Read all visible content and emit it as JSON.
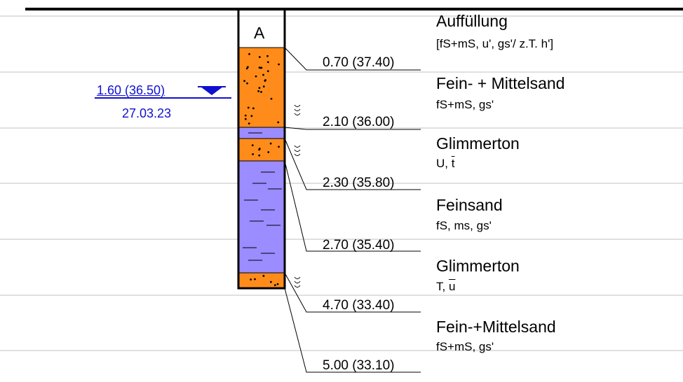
{
  "borehole": {
    "name": "A"
  },
  "water_level": {
    "depth": "1.60 (36.50)",
    "date": "27.03.23",
    "color": "#1010d0"
  },
  "depths": [
    "0.70 (37.40)",
    "2.10 (36.00)",
    "2.30 (35.80)",
    "2.70 (35.40)",
    "4.70 (33.40)",
    "5.00 (33.10)"
  ],
  "layers": [
    {
      "title": "Auffüllung",
      "desc_parts": [
        "[fS+mS, u', gs'/ z.T. h']"
      ]
    },
    {
      "title": "Fein- + Mittelsand",
      "desc_parts": [
        "fS+mS, gs'"
      ]
    },
    {
      "title": "Glimmerton",
      "desc_parts": [
        "U, ",
        "t"
      ]
    },
    {
      "title": "Feinsand",
      "desc_parts": [
        "fS, ms, gs'"
      ]
    },
    {
      "title": "Glimmerton",
      "desc_parts": [
        "T, ",
        "u"
      ]
    },
    {
      "title": "Fein-+Mittelsand",
      "desc_parts": [
        "fS+mS, gs'"
      ]
    }
  ],
  "colors": {
    "sand": "#ff8c1a",
    "clay": "#9b8cff",
    "line": "#000000",
    "grid": "#c0c0c0"
  }
}
